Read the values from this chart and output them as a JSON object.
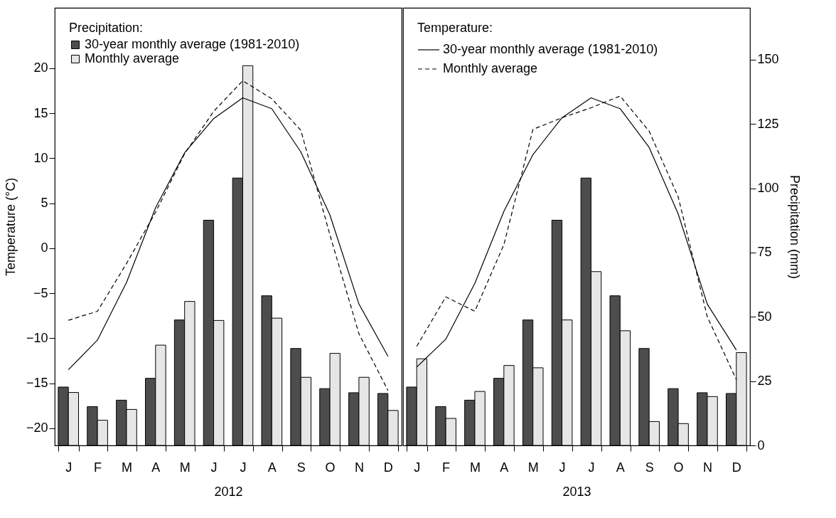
{
  "chart_data": [
    {
      "type": "bar",
      "xlabel": "2012",
      "ylabel": "Temperature (°C)",
      "categories": [
        "J",
        "F",
        "M",
        "A",
        "M",
        "J",
        "J",
        "A",
        "S",
        "O",
        "N",
        "D"
      ],
      "ylim": [
        -21.9,
        26.7
      ],
      "yticks": [
        -20,
        -15,
        -10,
        -5,
        0,
        5,
        10,
        15,
        20
      ],
      "y2lim": [
        0,
        170.2
      ],
      "legend": "top left",
      "legend_title": "Precipitation:",
      "series": [
        {
          "name": "30-year monthly average (1981-2010)",
          "color": "#4d4d4d",
          "axis": "y2",
          "values": [
            22.7,
            15.1,
            17.6,
            26.1,
            48.8,
            87.6,
            104.0,
            58.2,
            37.7,
            22.1,
            20.5,
            20.2
          ]
        },
        {
          "name": "Monthly average",
          "color": "#e6e6e6",
          "axis": "y2",
          "values": [
            20.6,
            9.8,
            14.0,
            39.0,
            56.0,
            48.6,
            147.7,
            49.5,
            26.5,
            35.8,
            26.5,
            13.6
          ]
        },
        {
          "type": "line",
          "color": "#000000",
          "line_style": "solid",
          "values": [
            -13.5,
            -10.2,
            -3.8,
            4.5,
            10.6,
            14.4,
            16.7,
            15.5,
            10.7,
            3.7,
            -6.2,
            -12.0
          ]
        },
        {
          "type": "line",
          "color": "#000000",
          "line_style": "dashed",
          "values": [
            -8.0,
            -7.0,
            -1.7,
            4.0,
            10.5,
            15.2,
            18.6,
            16.6,
            13.1,
            1.5,
            -9.5,
            -15.8
          ]
        }
      ]
    },
    {
      "type": "bar",
      "xlabel": "2013",
      "y2label": "Precipitation (mm)",
      "categories": [
        "J",
        "F",
        "M",
        "A",
        "M",
        "J",
        "J",
        "A",
        "S",
        "O",
        "N",
        "D"
      ],
      "ylim": [
        -21.9,
        26.7
      ],
      "y2lim": [
        0,
        170.2
      ],
      "y2ticks": [
        0,
        25,
        50,
        75,
        100,
        125,
        150
      ],
      "legend": "top left",
      "legend_title": "Temperature:",
      "series": [
        {
          "color": "#4d4d4d",
          "axis": "y2",
          "values": [
            22.7,
            15.1,
            17.6,
            26.1,
            48.8,
            87.6,
            104.0,
            58.2,
            37.7,
            22.1,
            20.5,
            20.2
          ]
        },
        {
          "color": "#e6e6e6",
          "axis": "y2",
          "values": [
            33.7,
            10.5,
            21.0,
            31.1,
            30.2,
            48.8,
            67.6,
            44.6,
            9.3,
            8.5,
            19.0,
            36.1
          ]
        },
        {
          "type": "line",
          "name": "30-year monthly average (1981-2010)",
          "color": "#000000",
          "line_style": "solid",
          "values": [
            -13.2,
            -10.1,
            -3.9,
            4.1,
            10.4,
            14.5,
            16.7,
            15.5,
            11.2,
            3.8,
            -6.2,
            -11.3
          ]
        },
        {
          "type": "line",
          "name": "Monthly average",
          "color": "#000000",
          "line_style": "dashed",
          "values": [
            -10.9,
            -5.4,
            -7.0,
            0.4,
            13.2,
            14.5,
            15.6,
            16.9,
            13.0,
            5.7,
            -7.6,
            -14.6
          ]
        }
      ]
    }
  ]
}
